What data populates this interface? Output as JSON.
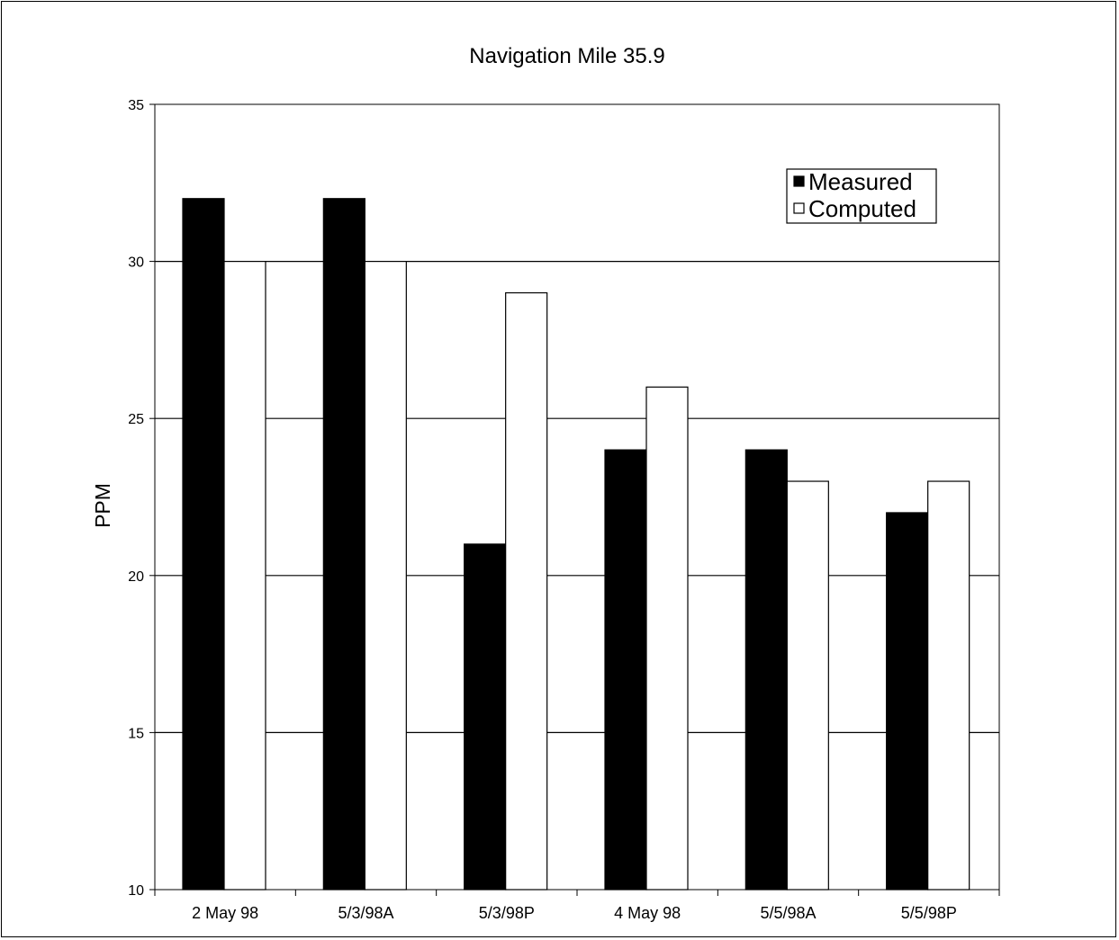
{
  "chart_data": {
    "type": "bar",
    "title": "Navigation Mile 35.9",
    "ylabel": "PPM",
    "xlabel": "",
    "categories": [
      "2 May 98",
      "5/3/98A",
      "5/3/98P",
      "4 May 98",
      "5/5/98A",
      "5/5/98P"
    ],
    "series": [
      {
        "name": "Measured",
        "values": [
          32,
          32,
          21,
          24,
          24,
          22
        ],
        "color": "#000000"
      },
      {
        "name": "Computed",
        "values": [
          30,
          30,
          29,
          26,
          23,
          23
        ],
        "color": "#ffffff"
      }
    ],
    "ylim": [
      10,
      35
    ],
    "yticks": [
      "10",
      "15",
      "20",
      "25",
      "30",
      "35"
    ],
    "grid": true,
    "legend": "top-right"
  }
}
